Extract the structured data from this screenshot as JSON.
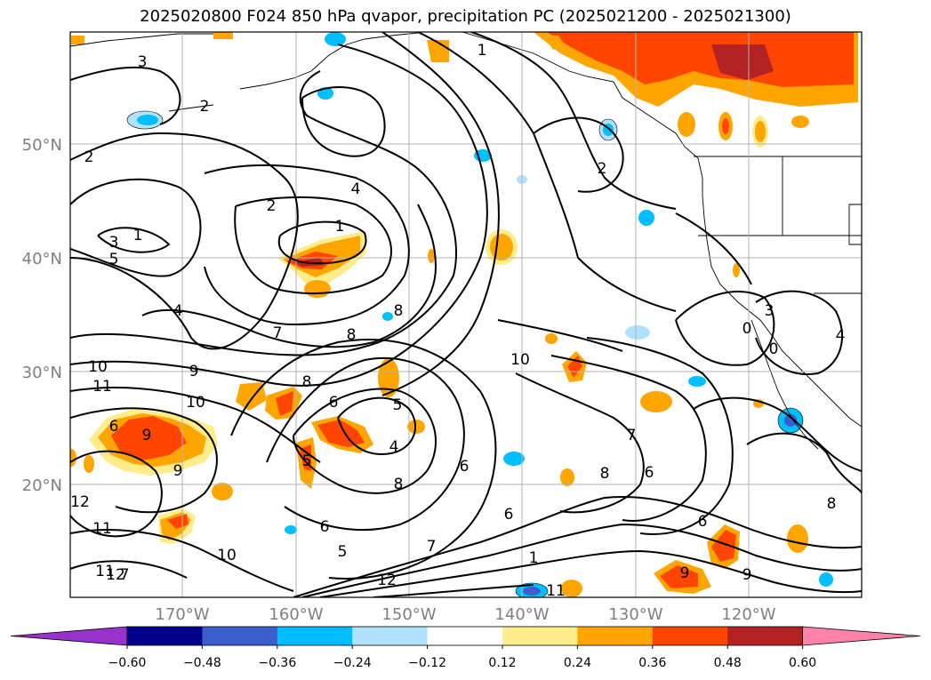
{
  "title": "2025020800 F024 850 hPa qvapor, precipitation PC (2025021200 - 2025021300)",
  "map": {
    "lat_labels": [
      "50°N",
      "40°N",
      "30°N",
      "20°N"
    ],
    "lon_labels": [
      "170°W",
      "160°W",
      "150°W",
      "140°W",
      "130°W",
      "120°W"
    ],
    "contour_labels": [
      "3",
      "2",
      "2",
      "1",
      "4",
      "2",
      "1",
      "3",
      "5",
      "4",
      "7",
      "8",
      "8",
      "10",
      "9",
      "11",
      "10",
      "9",
      "6",
      "8",
      "5",
      "6",
      "5",
      "4",
      "6",
      "8",
      "9",
      "10",
      "5",
      "6",
      "12",
      "11",
      "12",
      "11",
      "9",
      "10",
      "9",
      "8",
      "6",
      "1",
      "7",
      "12",
      "11",
      "7",
      "6",
      "6",
      "7",
      "8",
      "3",
      "4",
      "0",
      "0",
      "1",
      "2"
    ]
  },
  "colorbar": {
    "ticks": [
      "−0.60",
      "−0.48",
      "−0.36",
      "−0.24",
      "−0.12",
      "0.12",
      "0.24",
      "0.36",
      "0.48",
      "0.60"
    ],
    "colors": [
      "#9932cc",
      "#00008b",
      "#3a5fcd",
      "#00bfff",
      "#b0e2ff",
      "#ffffff",
      "#ffec8b",
      "#ffa500",
      "#ff4500",
      "#b22222",
      "#ff82ab"
    ]
  }
}
